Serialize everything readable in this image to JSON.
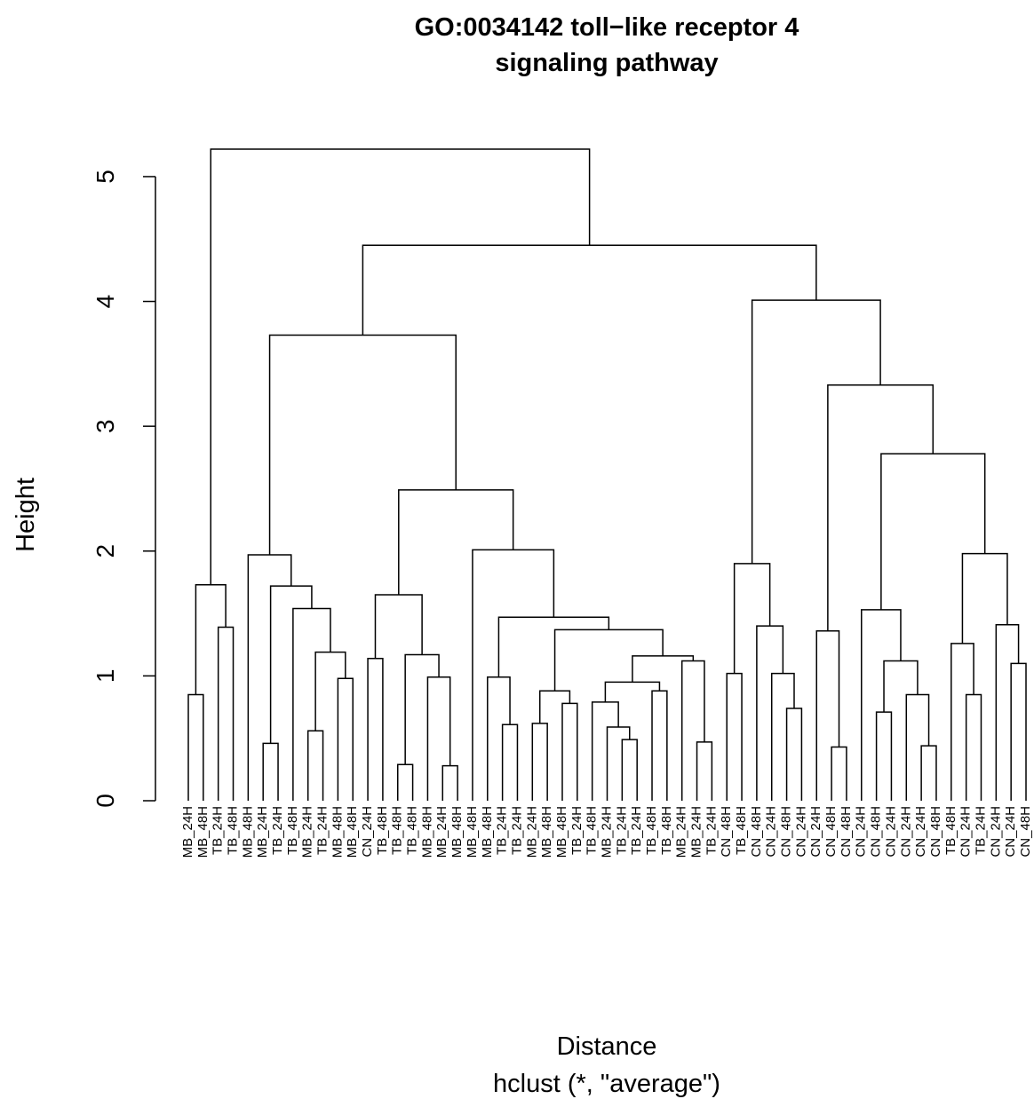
{
  "chart_data": {
    "type": "dendrogram",
    "title": [
      "GO:0034142 toll−like receptor 4",
      "signaling pathway"
    ],
    "xlabel": "Distance",
    "subtitle": "hclust (*, \"average\")",
    "ylabel": "Height",
    "ylim": [
      0,
      5.22
    ],
    "yticks": [
      0,
      1,
      2,
      3,
      4,
      5
    ],
    "color": "#000000",
    "labels": [
      "MB_24H",
      "MB_48H",
      "TB_24H",
      "TB_48H",
      "MB_48H",
      "MB_24H",
      "TB_24H",
      "TB_48H",
      "MB_24H",
      "TB_24H",
      "MB_48H",
      "MB_48H",
      "CN_24H",
      "TB_48H",
      "TB_48H",
      "TB_48H",
      "MB_48H",
      "MB_24H",
      "MB_48H",
      "MB_48H",
      "MB_48H",
      "TB_24H",
      "TB_24H",
      "MB_24H",
      "MB_48H",
      "MB_48H",
      "TB_24H",
      "TB_48H",
      "MB_24H",
      "TB_24H",
      "TB_24H",
      "TB_48H",
      "TB_48H",
      "MB_24H",
      "MB_24H",
      "TB_24H",
      "CN_48H",
      "TB_48H",
      "CN_48H",
      "CN_24H",
      "CN_48H",
      "CN_24H",
      "CN_24H",
      "CN_48H",
      "CN_48H",
      "CN_24H",
      "CN_48H",
      "CN_24H",
      "CN_24H",
      "CN_24H",
      "CN_48H",
      "TB_48H",
      "CN_24H",
      "TB_24H",
      "CN_24H",
      "CN_24H",
      "CN_48H"
    ],
    "merge": [
      [
        -1,
        -2
      ],
      [
        -3,
        -4
      ],
      [
        1,
        2
      ],
      [
        -6,
        -7
      ],
      [
        -9,
        -10
      ],
      [
        -11,
        -12
      ],
      [
        5,
        6
      ],
      [
        -8,
        7
      ],
      [
        4,
        8
      ],
      [
        -5,
        9
      ],
      [
        -13,
        -14
      ],
      [
        -15,
        -16
      ],
      [
        -18,
        -19
      ],
      [
        -17,
        13
      ],
      [
        12,
        14
      ],
      [
        11,
        15
      ],
      [
        -22,
        -23
      ],
      [
        -21,
        17
      ],
      [
        -24,
        -25
      ],
      [
        -26,
        -27
      ],
      [
        19,
        20
      ],
      [
        -30,
        -31
      ],
      [
        -29,
        22
      ],
      [
        -28,
        23
      ],
      [
        -32,
        -33
      ],
      [
        24,
        25
      ],
      [
        -35,
        -36
      ],
      [
        -34,
        27
      ],
      [
        26,
        28
      ],
      [
        21,
        29
      ],
      [
        18,
        30
      ],
      [
        -20,
        31
      ],
      [
        16,
        32
      ],
      [
        10,
        33
      ],
      [
        -37,
        -38
      ],
      [
        -41,
        -42
      ],
      [
        -40,
        36
      ],
      [
        -39,
        37
      ],
      [
        35,
        38
      ],
      [
        -44,
        -45
      ],
      [
        -43,
        40
      ],
      [
        -47,
        -48
      ],
      [
        -50,
        -51
      ],
      [
        -49,
        43
      ],
      [
        42,
        44
      ],
      [
        -46,
        45
      ],
      [
        -53,
        -54
      ],
      [
        -52,
        47
      ],
      [
        -56,
        -57
      ],
      [
        -55,
        49
      ],
      [
        48,
        50
      ],
      [
        46,
        51
      ],
      [
        41,
        52
      ],
      [
        39,
        53
      ],
      [
        34,
        54
      ],
      [
        3,
        55
      ]
    ],
    "height": [
      0.85,
      1.39,
      1.73,
      0.46,
      0.56,
      0.98,
      1.19,
      1.54,
      1.72,
      1.97,
      1.14,
      0.29,
      0.28,
      0.99,
      1.17,
      1.65,
      0.61,
      0.99,
      0.62,
      0.78,
      0.88,
      0.49,
      0.59,
      0.79,
      0.88,
      0.95,
      0.47,
      1.12,
      1.16,
      1.37,
      1.47,
      2.01,
      2.49,
      3.73,
      1.02,
      0.74,
      1.02,
      1.4,
      1.9,
      0.43,
      1.36,
      0.71,
      0.44,
      0.85,
      1.12,
      1.53,
      0.85,
      1.26,
      1.1,
      1.41,
      1.98,
      2.78,
      3.33,
      4.01,
      4.45,
      5.22
    ]
  }
}
